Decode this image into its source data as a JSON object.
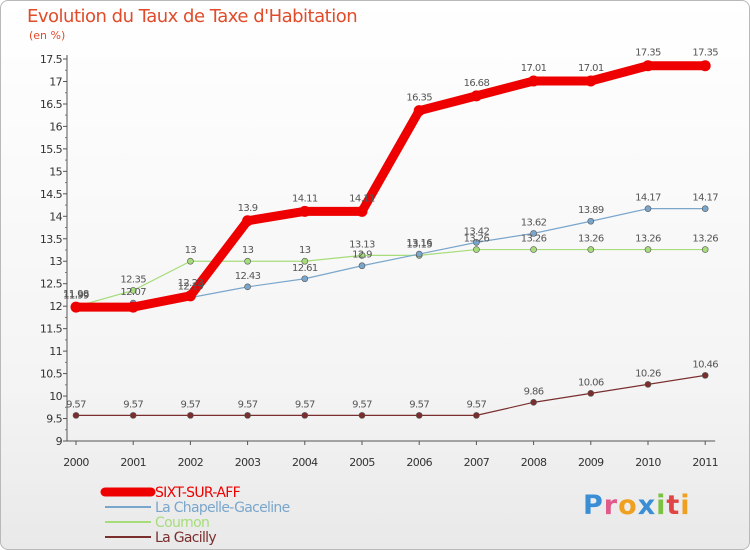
{
  "chart_data": {
    "type": "line",
    "title": "Evolution du Taux de Taxe d'Habitation",
    "unit": "(en %)",
    "x": [
      "2000",
      "2001",
      "2002",
      "2003",
      "2004",
      "2005",
      "2006",
      "2007",
      "2008",
      "2009",
      "2010",
      "2011"
    ],
    "ylim": [
      9,
      17.5
    ],
    "yticks": [
      "9",
      "9.5",
      "10",
      "10.5",
      "11",
      "11.5",
      "12",
      "12.5",
      "13",
      "13.5",
      "14",
      "14.5",
      "15",
      "15.5",
      "16",
      "16.5",
      "17",
      "17.5"
    ],
    "grid": false,
    "legend_position": "bottom-left",
    "series": [
      {
        "name": "SIXT-SUR-AFF",
        "color": "#ee0000",
        "values": [
          11.98,
          11.98,
          12.23,
          13.9,
          14.11,
          14.11,
          16.35,
          16.68,
          17.01,
          17.01,
          17.35,
          17.35
        ],
        "labels": [
          "11.98",
          "",
          "12.23",
          "13.9",
          "14.11",
          "14.11",
          "16.35",
          "16.68",
          "17.01",
          "17.01",
          "17.35",
          "17.35"
        ]
      },
      {
        "name": "La Chapelle-Gaceline",
        "color": "#7aa6cc",
        "values": [
          11.99,
          12.07,
          12.19,
          12.43,
          12.61,
          12.9,
          13.16,
          13.42,
          13.62,
          13.89,
          14.17,
          14.17
        ],
        "labels": [
          "11.99",
          "12.07",
          "12.19",
          "12.43",
          "12.61",
          "12.9",
          "13.16",
          "13.42",
          "13.62",
          "13.89",
          "14.17",
          "14.17"
        ]
      },
      {
        "name": "Cournon",
        "color": "#a6dd7a",
        "values": [
          11.99,
          12.35,
          13,
          13,
          13,
          13.13,
          13.13,
          13.26,
          13.26,
          13.26,
          13.26,
          13.26
        ],
        "labels": [
          "11.99",
          "12.35",
          "13",
          "13",
          "13",
          "13.13",
          "13.13",
          "13.26",
          "13.26",
          "13.26",
          "13.26",
          "13.26"
        ]
      },
      {
        "name": "La Gacilly",
        "color": "#7a2e2e",
        "values": [
          9.57,
          9.57,
          9.57,
          9.57,
          9.57,
          9.57,
          9.57,
          9.57,
          9.86,
          10.06,
          10.26,
          10.46
        ],
        "labels": [
          "9.57",
          "9.57",
          "9.57",
          "9.57",
          "9.57",
          "9.57",
          "9.57",
          "9.57",
          "9.86",
          "10.06",
          "10.26",
          "10.46"
        ]
      }
    ]
  },
  "logo": [
    "P",
    "r",
    "o",
    "x",
    "i",
    "t",
    "i"
  ]
}
